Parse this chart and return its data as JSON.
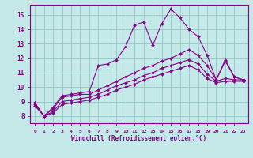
{
  "xlabel": "Windchill (Refroidissement éolien,°C)",
  "bg_color": "#c5e8e8",
  "line_color": "#880088",
  "grid_color": "#99cccc",
  "xlim": [
    -0.5,
    23.5
  ],
  "ylim": [
    7.5,
    15.7
  ],
  "xticks": [
    0,
    1,
    2,
    3,
    4,
    5,
    6,
    7,
    8,
    9,
    10,
    11,
    12,
    13,
    14,
    15,
    16,
    17,
    18,
    19,
    20,
    21,
    22,
    23
  ],
  "yticks": [
    8,
    9,
    10,
    11,
    12,
    13,
    14,
    15
  ],
  "series": [
    {
      "x": [
        0,
        1,
        2,
        3,
        4,
        5,
        6,
        7,
        8,
        9,
        10,
        11,
        12,
        13,
        14,
        15,
        16,
        17,
        18,
        19,
        20,
        21,
        22,
        23
      ],
      "y": [
        8.9,
        8.0,
        8.6,
        9.4,
        9.5,
        9.6,
        9.7,
        11.5,
        11.6,
        11.9,
        12.8,
        14.3,
        14.5,
        12.9,
        14.4,
        15.4,
        14.8,
        14.0,
        13.5,
        12.2,
        10.5,
        11.8,
        10.7,
        10.5
      ]
    },
    {
      "x": [
        0,
        1,
        2,
        3,
        4,
        5,
        6,
        7,
        8,
        9,
        10,
        11,
        12,
        13,
        14,
        15,
        16,
        17,
        18,
        19,
        20,
        21,
        22,
        23
      ],
      "y": [
        8.9,
        8.0,
        8.5,
        9.3,
        9.4,
        9.5,
        9.5,
        9.8,
        10.1,
        10.4,
        10.7,
        11.0,
        11.3,
        11.5,
        11.8,
        12.0,
        12.3,
        12.6,
        12.2,
        11.5,
        10.5,
        11.9,
        10.7,
        10.5
      ]
    },
    {
      "x": [
        0,
        1,
        2,
        3,
        4,
        5,
        6,
        7,
        8,
        9,
        10,
        11,
        12,
        13,
        14,
        15,
        16,
        17,
        18,
        19,
        20,
        21,
        22,
        23
      ],
      "y": [
        8.8,
        8.0,
        8.3,
        9.0,
        9.1,
        9.2,
        9.3,
        9.5,
        9.8,
        10.1,
        10.3,
        10.5,
        10.8,
        11.0,
        11.3,
        11.5,
        11.7,
        11.9,
        11.6,
        10.9,
        10.4,
        10.6,
        10.5,
        10.5
      ]
    },
    {
      "x": [
        0,
        1,
        2,
        3,
        4,
        5,
        6,
        7,
        8,
        9,
        10,
        11,
        12,
        13,
        14,
        15,
        16,
        17,
        18,
        19,
        20,
        21,
        22,
        23
      ],
      "y": [
        8.7,
        8.0,
        8.2,
        8.8,
        8.9,
        9.0,
        9.1,
        9.3,
        9.5,
        9.8,
        10.0,
        10.2,
        10.5,
        10.7,
        10.9,
        11.1,
        11.3,
        11.5,
        11.2,
        10.6,
        10.3,
        10.4,
        10.4,
        10.4
      ]
    }
  ]
}
